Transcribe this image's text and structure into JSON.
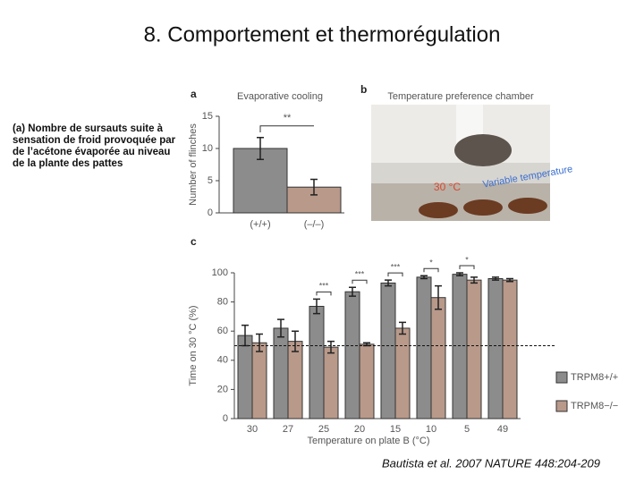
{
  "slide": {
    "title": "8. Comportement et thermorégulation",
    "caption": "(a) Nombre de sursauts suite à sensation de froid provoquée par de l’acétone évaporée au niveau de la plante des pattes",
    "citation": "Bautista et al. 2007 NATURE 448:204-209"
  },
  "photo": {
    "panel": "b",
    "title": "Temperature preference chamber",
    "label_left": "30 °C",
    "label_right": "Variable temperature"
  },
  "chart_data": [
    {
      "type": "bar",
      "panel": "a",
      "title": "Evaporative cooling",
      "y_label": "Number of flinches",
      "categories": [
        "(+/+)",
        "(–/–)"
      ],
      "values": [
        10,
        4
      ],
      "errors": [
        1.7,
        1.2
      ],
      "colors": [
        "#8c8c8c",
        "#b8998a"
      ],
      "ylim": [
        0,
        15
      ],
      "yticks": [
        0,
        5,
        10,
        15
      ],
      "annotation": "**"
    },
    {
      "type": "grouped_bar",
      "panel": "c",
      "y_label": "Time on 30 °C (%)",
      "x_label": "Temperature on plate B (°C)",
      "categories": [
        "30",
        "27",
        "25",
        "20",
        "15",
        "10",
        "5",
        "49"
      ],
      "series": [
        {
          "name": "TRPM8+/+",
          "color": "#8c8c8c",
          "values": [
            57,
            62,
            77,
            87,
            93,
            97,
            99,
            96
          ],
          "errors": [
            7,
            6,
            5,
            3,
            2,
            1,
            1,
            1
          ]
        },
        {
          "name": "TRPM8−/−",
          "color": "#b8998a",
          "values": [
            52,
            53,
            49,
            51,
            62,
            83,
            95,
            95
          ],
          "errors": [
            6,
            7,
            4,
            1,
            4,
            8,
            2,
            1
          ]
        }
      ],
      "ylim": [
        0,
        100
      ],
      "yticks": [
        0,
        20,
        40,
        60,
        80,
        100
      ],
      "reference_line": 50,
      "annotations": [
        {
          "text": "***",
          "at": "25"
        },
        {
          "text": "***",
          "at": "20"
        },
        {
          "text": "***",
          "at": "15"
        },
        {
          "text": "*",
          "at": "10"
        },
        {
          "text": "*",
          "at": "5"
        }
      ]
    }
  ]
}
